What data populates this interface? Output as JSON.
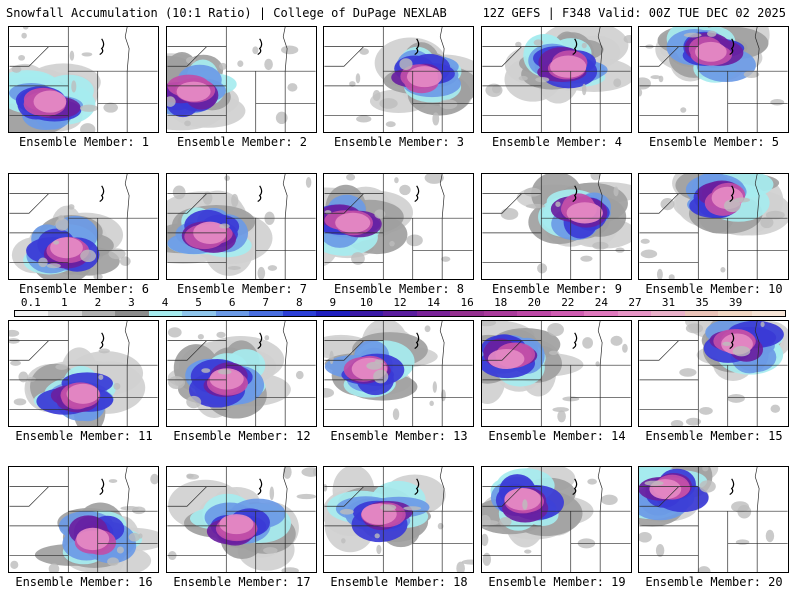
{
  "header": {
    "left": "Snowfall Accumulation (10:1 Ratio) | College of DuPage NEXLAB",
    "right": "12Z GEFS | F348 Valid: 00Z TUE DEC 02 2025"
  },
  "colorbar": {
    "ticks": [
      "0.1",
      "1",
      "2",
      "3",
      "4",
      "5",
      "6",
      "7",
      "8",
      "9",
      "10",
      "12",
      "14",
      "16",
      "18",
      "20",
      "22",
      "24",
      "27",
      "31",
      "35",
      "39"
    ],
    "colors": [
      "#f2f2f2",
      "#d4d4d4",
      "#b0b0b0",
      "#8c8c8c",
      "#a6ecef",
      "#8fc6ec",
      "#6b9ae6",
      "#4a6fe0",
      "#2c3fd6",
      "#1f1fbf",
      "#3b1aa8",
      "#5a1d9e",
      "#7a2399",
      "#95308f",
      "#a93a9a",
      "#bd48a6",
      "#cf5cb1",
      "#df78bd",
      "#e795c6",
      "#eab1c9",
      "#ebc3b8",
      "#f1d7c4",
      "#f6e4d6"
    ]
  },
  "members": [
    {
      "label": "Ensemble Member: 1"
    },
    {
      "label": "Ensemble Member: 2"
    },
    {
      "label": "Ensemble Member: 3"
    },
    {
      "label": "Ensemble Member: 4"
    },
    {
      "label": "Ensemble Member: 5"
    },
    {
      "label": "Ensemble Member: 6"
    },
    {
      "label": "Ensemble Member: 7"
    },
    {
      "label": "Ensemble Member: 8"
    },
    {
      "label": "Ensemble Member: 9"
    },
    {
      "label": "Ensemble Member: 10"
    },
    {
      "label": "Ensemble Member: 11"
    },
    {
      "label": "Ensemble Member: 12"
    },
    {
      "label": "Ensemble Member: 13"
    },
    {
      "label": "Ensemble Member: 14"
    },
    {
      "label": "Ensemble Member: 15"
    },
    {
      "label": "Ensemble Member: 16"
    },
    {
      "label": "Ensemble Member: 17"
    },
    {
      "label": "Ensemble Member: 18"
    },
    {
      "label": "Ensemble Member: 19"
    },
    {
      "label": "Ensemble Member: 20"
    }
  ]
}
